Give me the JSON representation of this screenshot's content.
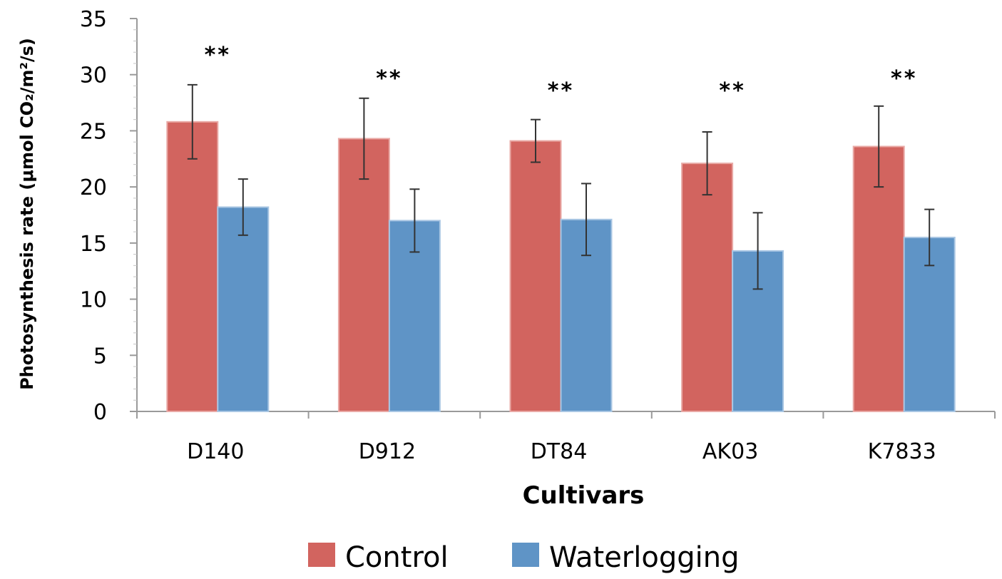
{
  "chart_data": {
    "type": "bar",
    "xlabel": "Cultivars",
    "ylabel": "Photosynthesis rate  (μmol CO₂/m²/s)",
    "ylim": [
      0,
      35
    ],
    "yticks": [
      0,
      5,
      10,
      15,
      20,
      25,
      30,
      35
    ],
    "categories": [
      "D140",
      "D912",
      "DT84",
      "AK03",
      "K7833"
    ],
    "series": [
      {
        "name": "Control",
        "color": "#d2645f",
        "values": [
          25.8,
          24.3,
          24.1,
          22.1,
          23.6
        ],
        "errors": [
          3.3,
          3.6,
          1.9,
          2.8,
          3.6
        ]
      },
      {
        "name": "Waterlogging",
        "color": "#5f94c6",
        "values": [
          18.2,
          17.0,
          17.1,
          14.3,
          15.5
        ],
        "errors": [
          2.5,
          2.8,
          3.2,
          3.4,
          2.5
        ]
      }
    ],
    "significance": [
      "**",
      "**",
      "**",
      "**",
      "**"
    ],
    "significance_y": [
      31.9,
      29.8,
      28.7,
      28.7,
      29.8
    ],
    "legend": "bottom",
    "grid": false
  }
}
